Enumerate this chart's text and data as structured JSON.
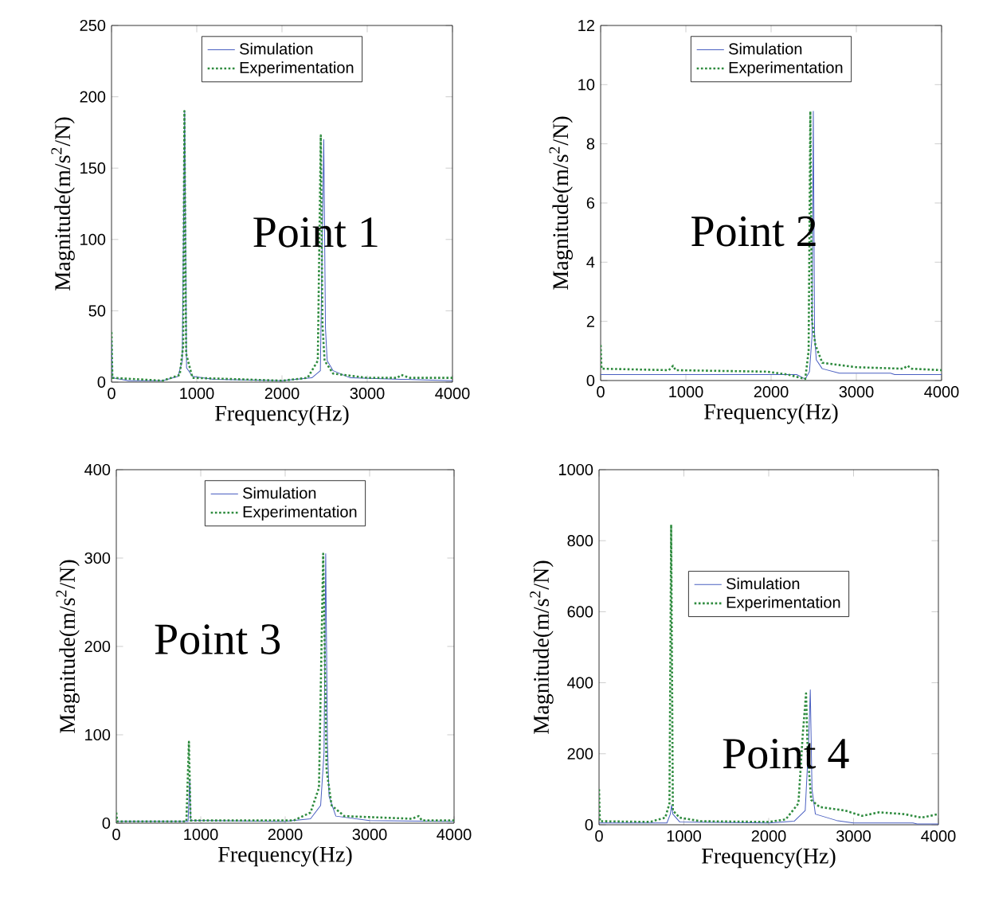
{
  "chart_data": [
    {
      "type": "line",
      "xlabel": "Frequency(Hz)",
      "ylabel": "Magnitude(m/s$^{2}$/N)",
      "annotations": [
        "Point 1"
      ],
      "xlim": [
        0,
        4000
      ],
      "ylim": [
        0,
        250
      ],
      "xticks": [
        0,
        1000,
        2000,
        3000,
        4000
      ],
      "yticks": [
        0,
        50,
        100,
        150,
        200,
        250
      ],
      "legend": "top",
      "series": [
        {
          "name": "Simulation",
          "color": "#4a5fc1",
          "line_style": "solid",
          "x": [
            0,
            10,
            200,
            600,
            780,
            830,
            858,
            880,
            950,
            1200,
            2000,
            2350,
            2450,
            2490,
            2510,
            2530,
            2600,
            2800,
            3400,
            4000
          ],
          "values": [
            30,
            3,
            1,
            1,
            4,
            15,
            190,
            10,
            4,
            2,
            1,
            3,
            8,
            170,
            38,
            15,
            8,
            3,
            2,
            1
          ]
        },
        {
          "name": "Experimentation",
          "color": "#2e8b3e",
          "line_style": "dotted",
          "x": [
            0,
            10,
            600,
            800,
            840,
            855,
            875,
            950,
            1500,
            2000,
            2300,
            2420,
            2455,
            2475,
            2500,
            2600,
            3000,
            3350,
            3400,
            3500,
            4000
          ],
          "values": [
            35,
            3,
            1,
            5,
            25,
            190,
            20,
            3,
            2,
            1,
            3,
            15,
            173,
            40,
            15,
            6,
            3,
            3,
            5,
            3,
            3
          ]
        }
      ]
    },
    {
      "type": "line",
      "xlabel": "Frequency(Hz)",
      "ylabel": "Magnitude(m/s$^{2}$/N)",
      "annotations": [
        "Point 2"
      ],
      "xlim": [
        0,
        4000
      ],
      "ylim": [
        0,
        12
      ],
      "xticks": [
        0,
        1000,
        2000,
        3000,
        4000
      ],
      "yticks": [
        0,
        2,
        4,
        6,
        8,
        10,
        12
      ],
      "legend": "top",
      "series": [
        {
          "name": "Simulation",
          "color": "#4a5fc1",
          "line_style": "solid",
          "x": [
            0,
            2300,
            2400,
            2450,
            2480,
            2495,
            2510,
            2530,
            2600,
            2800,
            3400,
            3450,
            4000
          ],
          "values": [
            0.2,
            0.2,
            0.05,
            0.3,
            1.5,
            9.1,
            1.5,
            0.7,
            0.4,
            0.25,
            0.25,
            0.2,
            0.2
          ]
        },
        {
          "name": "Experimentation",
          "color": "#2e8b3e",
          "line_style": "dotted",
          "x": [
            0,
            10,
            800,
            850,
            880,
            1950,
            2200,
            2400,
            2440,
            2460,
            2480,
            2520,
            2600,
            3000,
            3550,
            3600,
            3650,
            4000
          ],
          "values": [
            1.2,
            0.4,
            0.35,
            0.5,
            0.35,
            0.3,
            0.2,
            0.05,
            1,
            9.1,
            2,
            1.2,
            0.6,
            0.45,
            0.4,
            0.5,
            0.4,
            0.35
          ]
        }
      ]
    },
    {
      "type": "line",
      "xlabel": "Frequency(Hz)",
      "ylabel": "Magnitude(m/s$^{2}$/N)",
      "annotations": [
        "Point 3"
      ],
      "xlim": [
        0,
        4000
      ],
      "ylim": [
        0,
        400
      ],
      "xticks": [
        0,
        1000,
        2000,
        3000,
        4000
      ],
      "yticks": [
        0,
        100,
        200,
        300,
        400
      ],
      "legend": "top",
      "series": [
        {
          "name": "Simulation",
          "color": "#4a5fc1",
          "line_style": "solid",
          "x": [
            0,
            850,
            870,
            880,
            2000,
            2300,
            2420,
            2460,
            2480,
            2500,
            2520,
            2600,
            3000,
            4000
          ],
          "values": [
            2,
            2,
            50,
            3,
            2,
            5,
            20,
            80,
            305,
            90,
            30,
            8,
            3,
            2
          ]
        },
        {
          "name": "Experimentation",
          "color": "#2e8b3e",
          "line_style": "dotted",
          "x": [
            0,
            10,
            830,
            860,
            880,
            2100,
            2300,
            2400,
            2450,
            2490,
            2550,
            2700,
            3500,
            3580,
            3620,
            4000
          ],
          "values": [
            12,
            2,
            2,
            92,
            3,
            3,
            12,
            40,
            305,
            60,
            20,
            8,
            5,
            8,
            3,
            3
          ]
        }
      ]
    },
    {
      "type": "line",
      "xlabel": "Frequency(Hz)",
      "ylabel": "Magnitude(m/s$^{2}$/N)",
      "annotations": [
        "Point 4"
      ],
      "xlim": [
        0,
        4000
      ],
      "ylim": [
        0,
        1000
      ],
      "xticks": [
        0,
        1000,
        2000,
        3000,
        4000
      ],
      "yticks": [
        0,
        200,
        400,
        600,
        800,
        1000
      ],
      "legend": "center",
      "series": [
        {
          "name": "Simulation",
          "color": "#4a5fc1",
          "line_style": "solid",
          "x": [
            0,
            800,
            840,
            855,
            870,
            950,
            2000,
            2300,
            2430,
            2470,
            2490,
            2510,
            2550,
            2800,
            3000,
            3700,
            3750,
            4000
          ],
          "values": [
            5,
            5,
            30,
            55,
            30,
            8,
            5,
            10,
            40,
            230,
            380,
            100,
            30,
            12,
            5,
            5,
            2,
            2
          ]
        },
        {
          "name": "Experimentation",
          "color": "#2e8b3e",
          "line_style": "dotted",
          "x": [
            0,
            10,
            600,
            780,
            830,
            850,
            870,
            950,
            1200,
            2000,
            2200,
            2350,
            2400,
            2440,
            2460,
            2500,
            2600,
            2900,
            3100,
            3300,
            3600,
            3800,
            4000
          ],
          "values": [
            100,
            10,
            8,
            20,
            60,
            845,
            40,
            20,
            10,
            8,
            15,
            60,
            250,
            370,
            200,
            70,
            50,
            40,
            25,
            35,
            30,
            20,
            30
          ]
        }
      ]
    }
  ]
}
